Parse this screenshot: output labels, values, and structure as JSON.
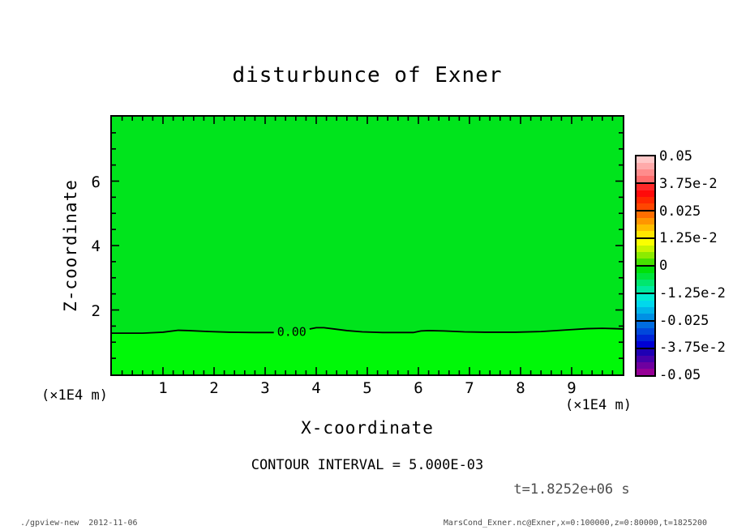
{
  "title": "disturbunce of Exner",
  "plot": {
    "contour_label": "0.00",
    "fill_above_zero": "#00e41c",
    "fill_below_zero": "#00f808",
    "frame_color": "#000000"
  },
  "axes": {
    "x": {
      "label": "X-coordinate",
      "unit": "(×1E4 m)",
      "tick_labels": [
        "1",
        "2",
        "3",
        "4",
        "5",
        "6",
        "7",
        "8",
        "9"
      ],
      "range": [
        0,
        10
      ],
      "minor_step": 0.2
    },
    "y": {
      "label": "Z-coordinate",
      "unit": "(×1E4 m)",
      "tick_labels": [
        "2",
        "4",
        "6"
      ],
      "range": [
        0,
        8
      ],
      "minor_step": 0.5
    }
  },
  "colorbar": {
    "tick_labels": [
      "0.05",
      "3.75e-2",
      "0.025",
      "1.25e-2",
      "0",
      "-1.25e-2",
      "-0.025",
      "-3.75e-2",
      "-0.05"
    ],
    "segments": [
      [
        "#ffc8c8",
        "#ffaaaa",
        "#ff8c8c",
        "#ff6e6e"
      ],
      [
        "#ff2828",
        "#ff0a0a",
        "#ff2800",
        "#ff4600"
      ],
      [
        "#ff6e00",
        "#ff9600",
        "#ffbe00",
        "#ffe600"
      ],
      [
        "#faff00",
        "#c8f500",
        "#8ceb00",
        "#46e100"
      ],
      [
        "#00e10a",
        "#00e43c",
        "#00e76e",
        "#00eaa0"
      ],
      [
        "#00ecd2",
        "#00d8ec",
        "#00b4e8",
        "#0090e4"
      ],
      [
        "#006ce0",
        "#0048dc",
        "#0024d8",
        "#0000d4"
      ],
      [
        "#1e00b4",
        "#4600aa",
        "#6e00a0",
        "#960096"
      ]
    ]
  },
  "annotations": {
    "contour_interval": "CONTOUR INTERVAL = 5.000E-03",
    "time": "t=1.8252e+06 s"
  },
  "footer": {
    "left": "./gpview-new  2012-11-06",
    "right": "MarsCond_Exner.nc@Exner,x=0:100000,z=0:80000,t=1825200"
  },
  "chart_data": {
    "type": "heatmap",
    "title": "disturbunce of Exner",
    "xlabel": "X-coordinate (×1E4 m)",
    "ylabel": "Z-coordinate (×1E4 m)",
    "xlim": [
      0,
      10
    ],
    "ylim": [
      0,
      8
    ],
    "grid": false,
    "legend_position": "right-colorbar",
    "contour_interval": 0.005,
    "colorbar_levels": [
      0.05,
      0.0375,
      0.025,
      0.0125,
      0,
      -0.0125,
      -0.025,
      -0.0375,
      -0.05
    ],
    "time_seconds": 1825200,
    "description": "Exner function disturbance is ~0 over the whole domain; field slightly >0 above the single 0.00 contour (z ≈ 1.3×1E4 m) and slightly <0 below it",
    "zero_contour": {
      "level": 0.0,
      "label": "0.00",
      "label_gap_x": [
        3.17,
        3.87
      ],
      "points": [
        [
          0,
          1.28
        ],
        [
          0.6,
          1.28
        ],
        [
          1.0,
          1.31
        ],
        [
          1.3,
          1.37
        ],
        [
          1.5,
          1.36
        ],
        [
          1.9,
          1.33
        ],
        [
          2.3,
          1.31
        ],
        [
          2.8,
          1.3
        ],
        [
          3.17,
          1.3
        ],
        [
          3.87,
          1.41
        ],
        [
          4.0,
          1.45
        ],
        [
          4.15,
          1.45
        ],
        [
          4.35,
          1.41
        ],
        [
          4.6,
          1.36
        ],
        [
          4.9,
          1.32
        ],
        [
          5.3,
          1.3
        ],
        [
          5.9,
          1.3
        ],
        [
          6.05,
          1.35
        ],
        [
          6.2,
          1.36
        ],
        [
          6.5,
          1.35
        ],
        [
          6.9,
          1.32
        ],
        [
          7.3,
          1.31
        ],
        [
          7.9,
          1.31
        ],
        [
          8.4,
          1.33
        ],
        [
          8.9,
          1.38
        ],
        [
          9.3,
          1.42
        ],
        [
          9.6,
          1.43
        ],
        [
          9.85,
          1.42
        ],
        [
          10,
          1.41
        ]
      ]
    }
  }
}
